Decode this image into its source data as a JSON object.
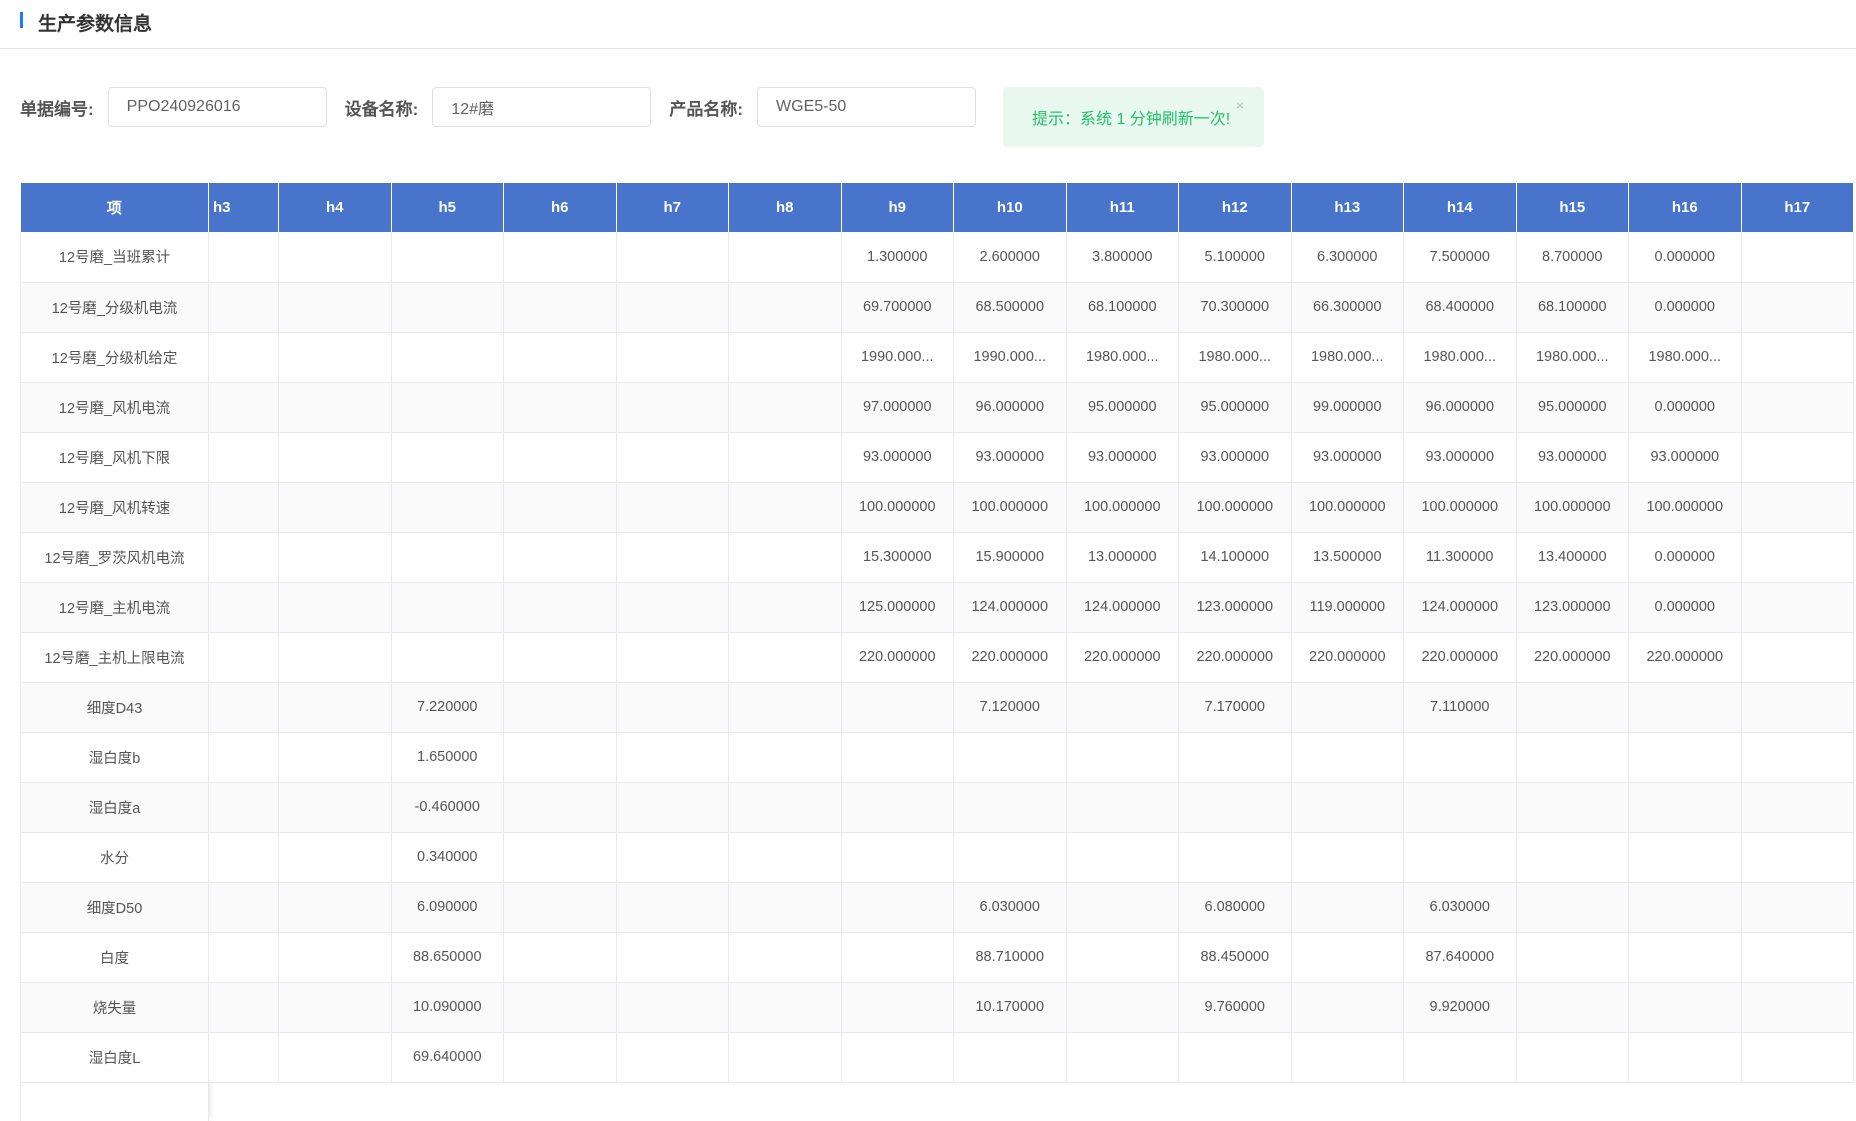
{
  "header": {
    "title": "生产参数信息"
  },
  "filters": [
    {
      "label": "单据编号:",
      "value": "PPO240926016"
    },
    {
      "label": "设备名称:",
      "value": "12#磨"
    },
    {
      "label": "产品名称:",
      "value": "WGE5-50"
    }
  ],
  "tip": {
    "text": "提示：系统 1 分钟刷新一次!",
    "close": "×"
  },
  "colors": {
    "header_bg": "#4874cb",
    "tip_text": "#22c16a",
    "tip_bg": "#e8f8ef",
    "accent": "#1e7cf4"
  },
  "table": {
    "columns": [
      "项",
      "h3",
      "h4",
      "h5",
      "h6",
      "h7",
      "h8",
      "h9",
      "h10",
      "h11",
      "h12",
      "h13",
      "h14",
      "h15",
      "h16",
      "h17"
    ],
    "rows": [
      [
        "12号磨_当班累计",
        "",
        "",
        "",
        "",
        "",
        "",
        "1.300000",
        "2.600000",
        "3.800000",
        "5.100000",
        "6.300000",
        "7.500000",
        "8.700000",
        "0.000000",
        ""
      ],
      [
        "12号磨_分级机电流",
        "",
        "",
        "",
        "",
        "",
        "",
        "69.700000",
        "68.500000",
        "68.100000",
        "70.300000",
        "66.300000",
        "68.400000",
        "68.100000",
        "0.000000",
        ""
      ],
      [
        "12号磨_分级机给定",
        "",
        "",
        "",
        "",
        "",
        "",
        "1990.000...",
        "1990.000...",
        "1980.000...",
        "1980.000...",
        "1980.000...",
        "1980.000...",
        "1980.000...",
        "1980.000...",
        ""
      ],
      [
        "12号磨_风机电流",
        "",
        "",
        "",
        "",
        "",
        "",
        "97.000000",
        "96.000000",
        "95.000000",
        "95.000000",
        "99.000000",
        "96.000000",
        "95.000000",
        "0.000000",
        ""
      ],
      [
        "12号磨_风机下限",
        "",
        "",
        "",
        "",
        "",
        "",
        "93.000000",
        "93.000000",
        "93.000000",
        "93.000000",
        "93.000000",
        "93.000000",
        "93.000000",
        "93.000000",
        ""
      ],
      [
        "12号磨_风机转速",
        "",
        "",
        "",
        "",
        "",
        "",
        "100.000000",
        "100.000000",
        "100.000000",
        "100.000000",
        "100.000000",
        "100.000000",
        "100.000000",
        "100.000000",
        ""
      ],
      [
        "12号磨_罗茨风机电流",
        "",
        "",
        "",
        "",
        "",
        "",
        "15.300000",
        "15.900000",
        "13.000000",
        "14.100000",
        "13.500000",
        "11.300000",
        "13.400000",
        "0.000000",
        ""
      ],
      [
        "12号磨_主机电流",
        "",
        "",
        "",
        "",
        "",
        "",
        "125.000000",
        "124.000000",
        "124.000000",
        "123.000000",
        "119.000000",
        "124.000000",
        "123.000000",
        "0.000000",
        ""
      ],
      [
        "12号磨_主机上限电流",
        "",
        "",
        "",
        "",
        "",
        "",
        "220.000000",
        "220.000000",
        "220.000000",
        "220.000000",
        "220.000000",
        "220.000000",
        "220.000000",
        "220.000000",
        ""
      ],
      [
        "细度D43",
        "",
        "",
        "7.220000",
        "",
        "",
        "",
        "",
        "7.120000",
        "",
        "7.170000",
        "",
        "7.110000",
        "",
        "",
        ""
      ],
      [
        "湿白度b",
        "",
        "",
        "1.650000",
        "",
        "",
        "",
        "",
        "",
        "",
        "",
        "",
        "",
        "",
        "",
        ""
      ],
      [
        "湿白度a",
        "",
        "",
        "-0.460000",
        "",
        "",
        "",
        "",
        "",
        "",
        "",
        "",
        "",
        "",
        "",
        ""
      ],
      [
        "水分",
        "",
        "",
        "0.340000",
        "",
        "",
        "",
        "",
        "",
        "",
        "",
        "",
        "",
        "",
        "",
        ""
      ],
      [
        "细度D50",
        "",
        "",
        "6.090000",
        "",
        "",
        "",
        "",
        "6.030000",
        "",
        "6.080000",
        "",
        "6.030000",
        "",
        "",
        ""
      ],
      [
        "白度",
        "",
        "",
        "88.650000",
        "",
        "",
        "",
        "",
        "88.710000",
        "",
        "88.450000",
        "",
        "87.640000",
        "",
        "",
        ""
      ],
      [
        "烧失量",
        "",
        "",
        "10.090000",
        "",
        "",
        "",
        "",
        "10.170000",
        "",
        "9.760000",
        "",
        "9.920000",
        "",
        "",
        ""
      ],
      [
        "湿白度L",
        "",
        "",
        "69.640000",
        "",
        "",
        "",
        "",
        "",
        "",
        "",
        "",
        "",
        "",
        "",
        ""
      ]
    ]
  }
}
